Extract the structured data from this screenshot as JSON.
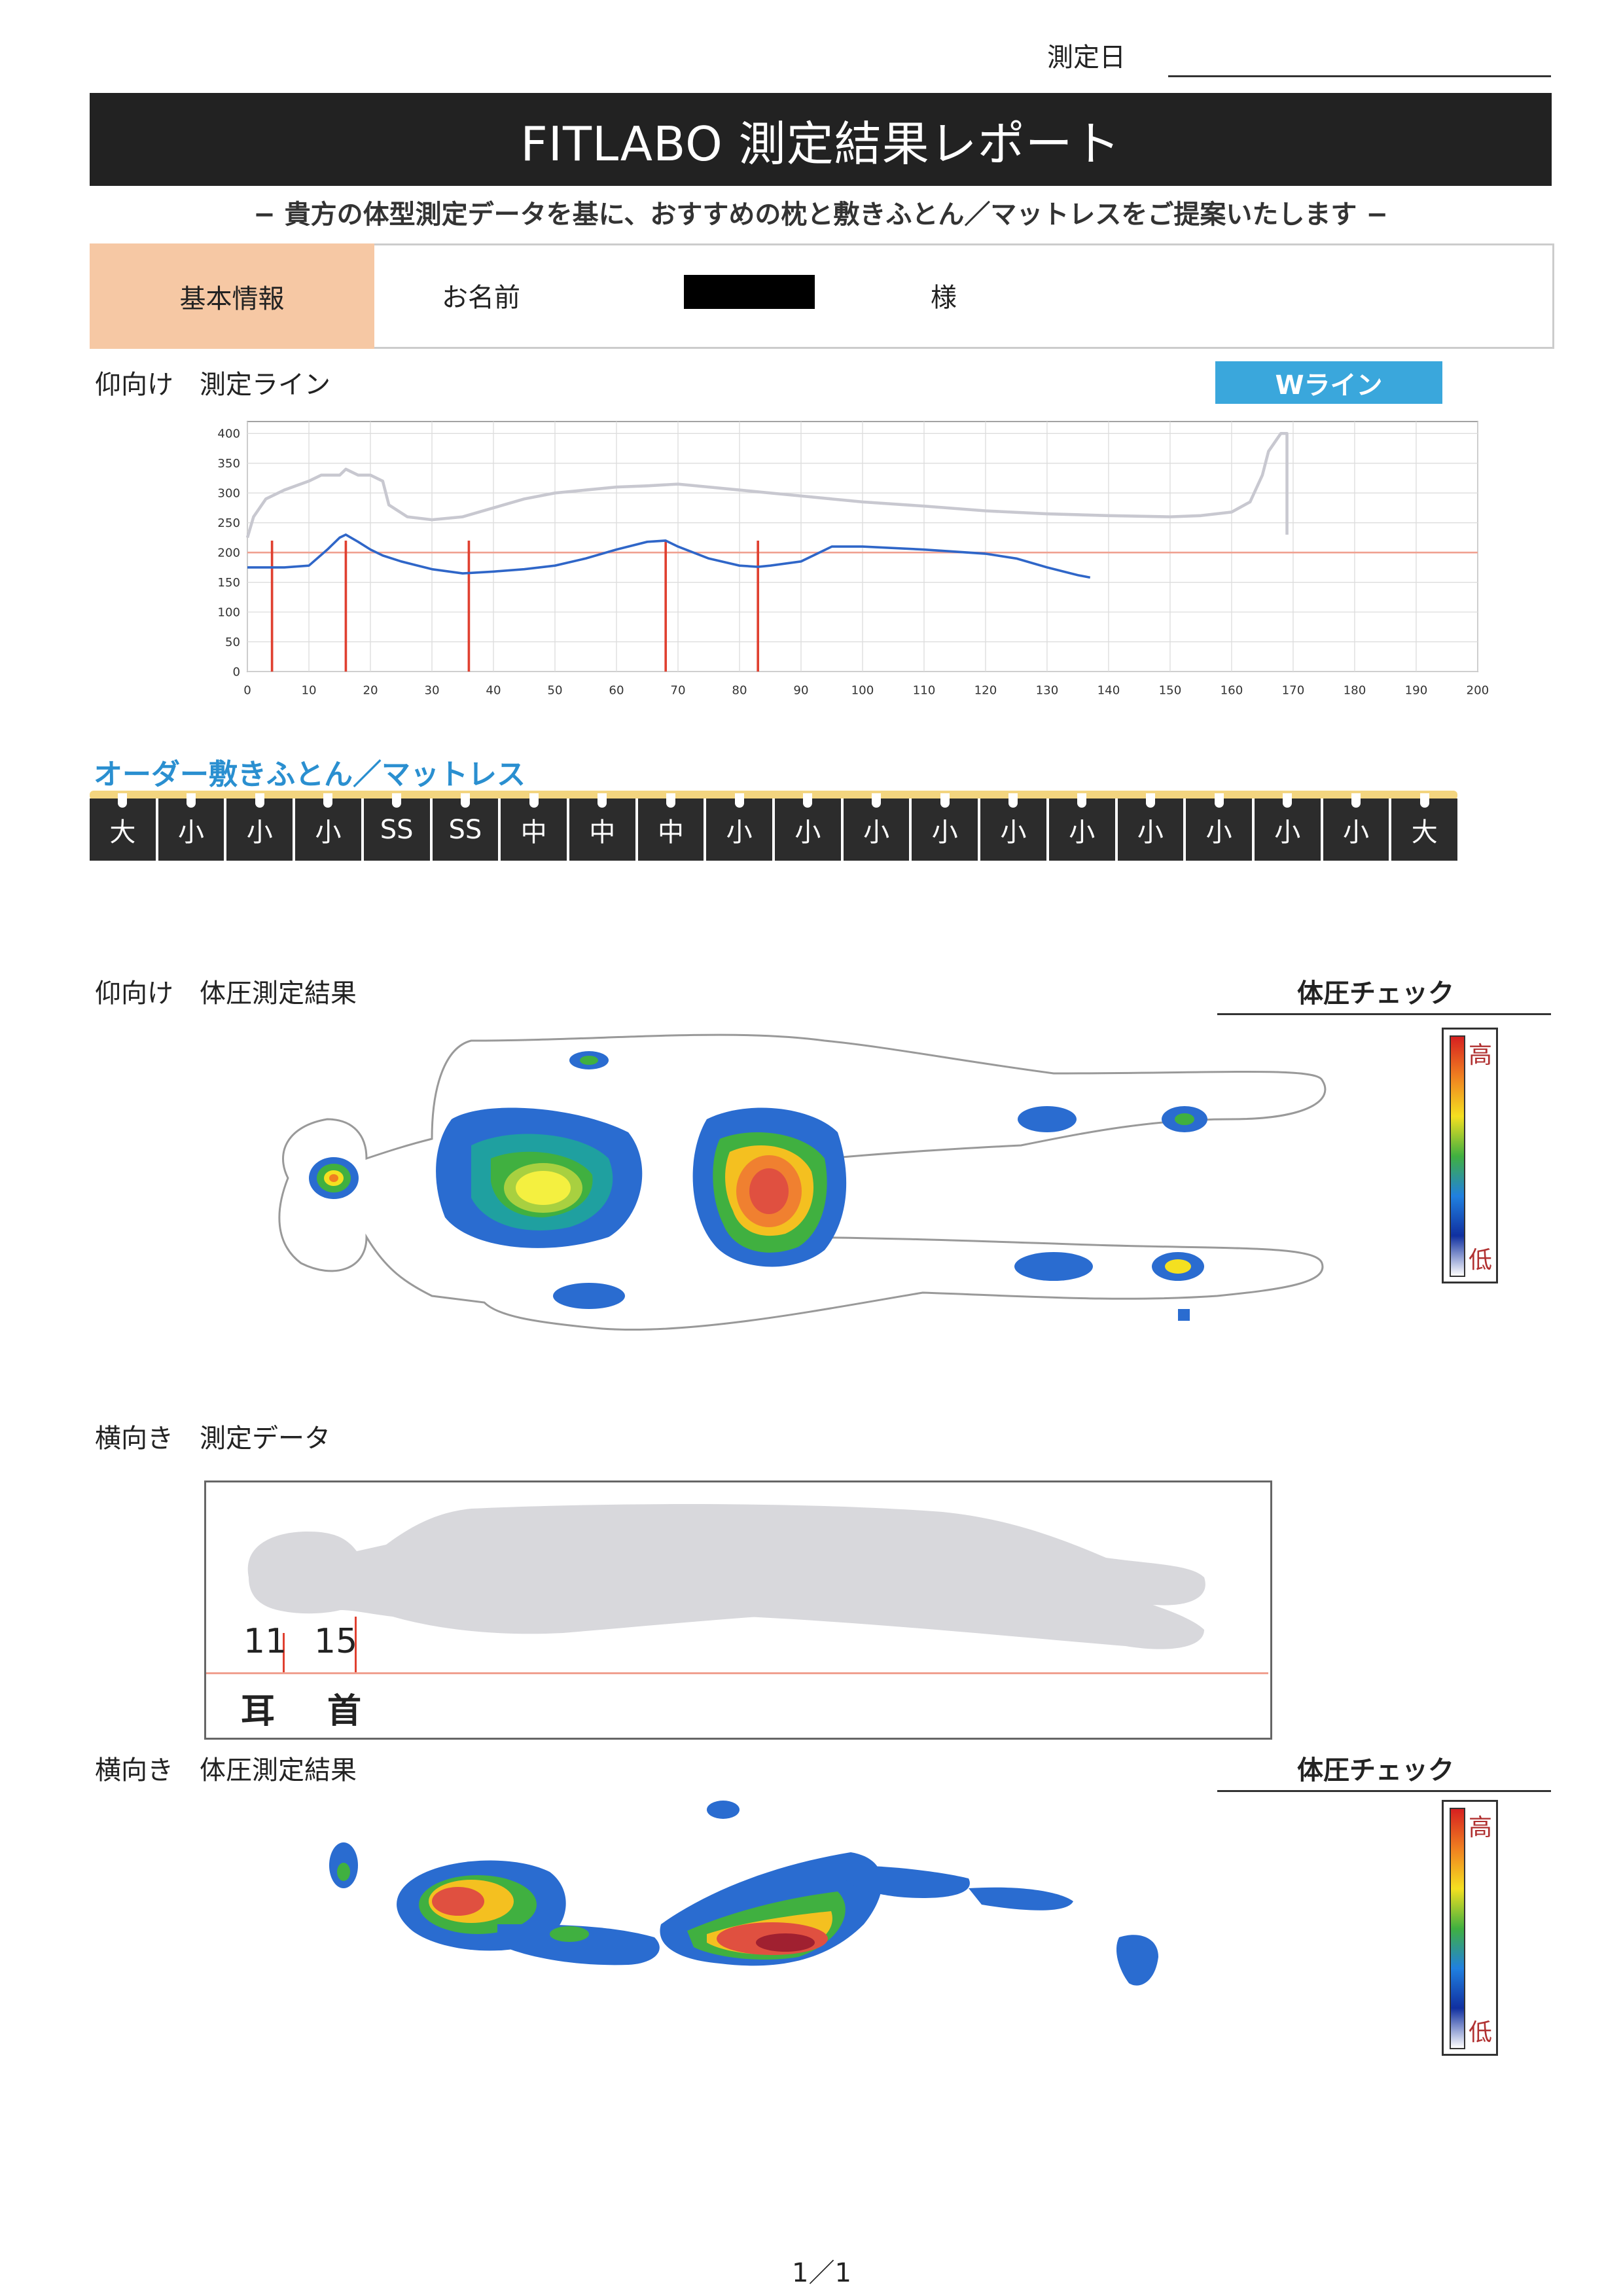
{
  "header": {
    "date_label": "測定日",
    "title": "FITLABO 測定結果レポート",
    "subtitle": "− 貴方の体型測定データを基に、おすすめの枕と敷きふとん／マットレスをご提案いたします −"
  },
  "info": {
    "section_label": "基本情報",
    "name_label": "お名前",
    "honorific": "様"
  },
  "supine_line": {
    "title": "仰向け　測定ライン",
    "badge": "Wライン"
  },
  "chart_data": {
    "type": "line",
    "x_ticks": [
      "0",
      "10",
      "20",
      "30",
      "40",
      "50",
      "60",
      "70",
      "80",
      "90",
      "100",
      "110",
      "120",
      "130",
      "140",
      "150",
      "160",
      "170",
      "180",
      "190",
      "200"
    ],
    "y_ticks": [
      "0",
      "50",
      "100",
      "150",
      "200",
      "250",
      "300",
      "350",
      "400"
    ],
    "xlim": [
      0,
      200
    ],
    "ylim": [
      0,
      400
    ],
    "reference_line_y": 200,
    "series": [
      {
        "color": "#c8c8d0",
        "x": [
          0,
          1,
          3,
          6,
          10,
          12,
          15,
          16,
          18,
          20,
          22,
          23,
          26,
          30,
          35,
          40,
          45,
          50,
          55,
          60,
          65,
          70,
          75,
          80,
          85,
          90,
          95,
          100,
          110,
          120,
          130,
          140,
          150,
          155,
          160,
          163,
          165,
          166,
          168,
          169,
          169
        ],
        "y": [
          225,
          260,
          290,
          305,
          320,
          330,
          330,
          340,
          330,
          330,
          320,
          280,
          260,
          255,
          260,
          275,
          290,
          300,
          305,
          310,
          312,
          315,
          310,
          305,
          300,
          295,
          290,
          285,
          278,
          270,
          265,
          262,
          260,
          262,
          268,
          285,
          330,
          370,
          400,
          400,
          230
        ]
      },
      {
        "color": "#2f66c8",
        "x": [
          0,
          3,
          6,
          10,
          13,
          15,
          16,
          18,
          20,
          22,
          25,
          30,
          35,
          40,
          45,
          50,
          55,
          60,
          65,
          68,
          70,
          75,
          80,
          83,
          85,
          90,
          95,
          100,
          110,
          120,
          125,
          130,
          135,
          137
        ],
        "y": [
          175,
          175,
          175,
          178,
          205,
          225,
          230,
          218,
          205,
          195,
          185,
          172,
          165,
          168,
          172,
          178,
          190,
          205,
          218,
          220,
          210,
          190,
          178,
          176,
          178,
          185,
          210,
          210,
          205,
          198,
          190,
          175,
          162,
          158
        ]
      }
    ],
    "markers_x": [
      4,
      16,
      36,
      68,
      83
    ]
  },
  "order": {
    "title": "オーダー敷きふとん／マットレス",
    "segments": [
      "大",
      "小",
      "小",
      "小",
      "SS",
      "SS",
      "中",
      "中",
      "中",
      "小",
      "小",
      "小",
      "小",
      "小",
      "小",
      "小",
      "小",
      "小",
      "小",
      "大"
    ]
  },
  "supine_pressure": {
    "title": "仰向け　体圧測定結果",
    "check_title": "体圧チェック",
    "scale_high": "高",
    "scale_low": "低"
  },
  "side_data": {
    "title": "横向き　測定データ",
    "values": [
      "11",
      "15"
    ],
    "labels": [
      "耳",
      "首"
    ]
  },
  "side_pressure": {
    "title": "横向き　体圧測定結果",
    "check_title": "体圧チェック",
    "scale_high": "高",
    "scale_low": "低"
  },
  "footer": {
    "page": "1／1"
  }
}
